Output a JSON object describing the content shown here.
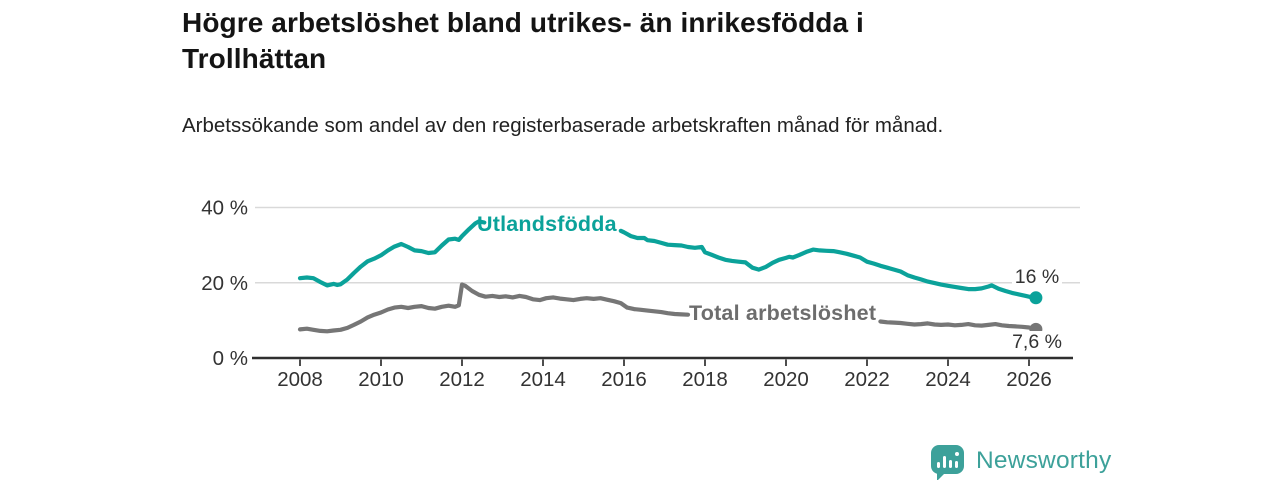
{
  "title": "Högre arbetslöshet bland utrikes- än inrikesfödda i Trollhättan",
  "subtitle": "Arbetssökande som andel av den registerbaserade arbetskraften månad för månad.",
  "footer": {
    "brand": "Newsworthy",
    "logo_icon": "bar-chart-speech-bubble-icon"
  },
  "brand_color": "#3da19a",
  "chart_data": {
    "type": "line",
    "unit": "%",
    "x_axis": {
      "ticks": [
        2008,
        2010,
        2012,
        2014,
        2016,
        2018,
        2020,
        2022,
        2024,
        2026
      ],
      "range": [
        2006.8,
        2027.3
      ]
    },
    "y_axis": {
      "ticks": [
        {
          "value": 0,
          "label": "0 %"
        },
        {
          "value": 20,
          "label": "20 %"
        },
        {
          "value": 40,
          "label": "40 %"
        }
      ],
      "range": [
        0,
        40
      ],
      "gridlines": [
        20,
        40
      ]
    },
    "style": {
      "gridline_color": "#d9d9d9",
      "axis_color": "#2f2f2f",
      "tick_label_color": "#333333",
      "value_label_color": "#333333"
    },
    "series": [
      {
        "id": "utlandsfodda",
        "name": "Utlandsfödda",
        "color": "#0ba29a",
        "label_color": "#0ba29a",
        "end_label": "16 %",
        "end_value": 16.0,
        "segments": [
          [
            [
              2008.0,
              21.2
            ],
            [
              2008.17,
              21.4
            ],
            [
              2008.33,
              21.2
            ],
            [
              2008.5,
              20.2
            ],
            [
              2008.67,
              19.3
            ],
            [
              2008.83,
              19.7
            ],
            [
              2008.92,
              19.4
            ],
            [
              2009.0,
              19.6
            ],
            [
              2009.17,
              20.9
            ],
            [
              2009.33,
              22.6
            ],
            [
              2009.5,
              24.3
            ],
            [
              2009.67,
              25.7
            ],
            [
              2009.83,
              26.4
            ],
            [
              2010.0,
              27.3
            ],
            [
              2010.17,
              28.6
            ],
            [
              2010.33,
              29.6
            ],
            [
              2010.5,
              30.3
            ],
            [
              2010.67,
              29.5
            ],
            [
              2010.83,
              28.6
            ],
            [
              2011.0,
              28.4
            ],
            [
              2011.17,
              27.9
            ],
            [
              2011.33,
              28.1
            ],
            [
              2011.5,
              29.9
            ],
            [
              2011.67,
              31.5
            ],
            [
              2011.83,
              31.7
            ],
            [
              2011.92,
              31.4
            ],
            [
              2012.0,
              32.4
            ],
            [
              2012.17,
              34.2
            ],
            [
              2012.33,
              35.8
            ],
            [
              2012.42,
              36.3
            ],
            [
              2012.55,
              36.0
            ]
          ],
          [
            [
              2015.92,
              33.8
            ],
            [
              2016.0,
              33.4
            ],
            [
              2016.17,
              32.4
            ],
            [
              2016.33,
              31.9
            ],
            [
              2016.5,
              31.9
            ],
            [
              2016.58,
              31.3
            ],
            [
              2016.75,
              31.1
            ],
            [
              2016.92,
              30.6
            ],
            [
              2017.08,
              30.1
            ],
            [
              2017.25,
              30.0
            ],
            [
              2017.42,
              29.9
            ],
            [
              2017.58,
              29.5
            ],
            [
              2017.75,
              29.3
            ],
            [
              2017.92,
              29.5
            ],
            [
              2018.0,
              28.1
            ],
            [
              2018.17,
              27.4
            ],
            [
              2018.33,
              26.7
            ],
            [
              2018.5,
              26.1
            ],
            [
              2018.67,
              25.8
            ],
            [
              2018.83,
              25.6
            ],
            [
              2019.0,
              25.4
            ],
            [
              2019.17,
              24.0
            ],
            [
              2019.33,
              23.5
            ],
            [
              2019.5,
              24.2
            ],
            [
              2019.67,
              25.3
            ],
            [
              2019.83,
              26.1
            ],
            [
              2020.0,
              26.6
            ],
            [
              2020.08,
              26.9
            ],
            [
              2020.17,
              26.7
            ],
            [
              2020.33,
              27.4
            ],
            [
              2020.5,
              28.2
            ],
            [
              2020.67,
              28.8
            ],
            [
              2020.83,
              28.6
            ],
            [
              2021.0,
              28.5
            ],
            [
              2021.17,
              28.4
            ],
            [
              2021.33,
              28.1
            ],
            [
              2021.5,
              27.7
            ],
            [
              2021.67,
              27.2
            ],
            [
              2021.83,
              26.7
            ],
            [
              2022.0,
              25.6
            ],
            [
              2022.17,
              25.1
            ],
            [
              2022.33,
              24.5
            ],
            [
              2022.5,
              24.0
            ],
            [
              2022.67,
              23.5
            ],
            [
              2022.83,
              23.0
            ],
            [
              2023.0,
              22.0
            ],
            [
              2023.17,
              21.4
            ],
            [
              2023.33,
              20.9
            ],
            [
              2023.5,
              20.3
            ],
            [
              2023.67,
              19.9
            ],
            [
              2023.83,
              19.5
            ],
            [
              2024.0,
              19.2
            ],
            [
              2024.17,
              18.9
            ],
            [
              2024.33,
              18.6
            ],
            [
              2024.5,
              18.3
            ],
            [
              2024.67,
              18.3
            ],
            [
              2024.83,
              18.5
            ],
            [
              2025.0,
              19.0
            ],
            [
              2025.08,
              19.3
            ],
            [
              2025.25,
              18.4
            ],
            [
              2025.42,
              17.8
            ],
            [
              2025.58,
              17.3
            ],
            [
              2025.75,
              16.9
            ],
            [
              2025.92,
              16.5
            ],
            [
              2026.08,
              16.1
            ],
            [
              2026.17,
              16.0
            ]
          ]
        ]
      },
      {
        "id": "total",
        "name": "Total arbetslöshet",
        "color": "#767676",
        "label_color": "#6d6d6d",
        "end_label": "7,6 %",
        "end_value": 7.6,
        "segments": [
          [
            [
              2008.0,
              7.6
            ],
            [
              2008.17,
              7.8
            ],
            [
              2008.33,
              7.5
            ],
            [
              2008.5,
              7.2
            ],
            [
              2008.67,
              7.1
            ],
            [
              2008.83,
              7.3
            ],
            [
              2009.0,
              7.5
            ],
            [
              2009.17,
              8.0
            ],
            [
              2009.33,
              8.8
            ],
            [
              2009.5,
              9.7
            ],
            [
              2009.67,
              10.8
            ],
            [
              2009.83,
              11.5
            ],
            [
              2010.0,
              12.1
            ],
            [
              2010.17,
              12.9
            ],
            [
              2010.33,
              13.4
            ],
            [
              2010.5,
              13.6
            ],
            [
              2010.67,
              13.3
            ],
            [
              2010.83,
              13.6
            ],
            [
              2011.0,
              13.8
            ],
            [
              2011.17,
              13.3
            ],
            [
              2011.33,
              13.1
            ],
            [
              2011.5,
              13.6
            ],
            [
              2011.67,
              13.9
            ],
            [
              2011.83,
              13.6
            ],
            [
              2011.92,
              14.0
            ],
            [
              2012.0,
              19.5
            ],
            [
              2012.08,
              19.2
            ],
            [
              2012.25,
              17.8
            ],
            [
              2012.42,
              16.8
            ],
            [
              2012.58,
              16.3
            ],
            [
              2012.75,
              16.5
            ],
            [
              2012.92,
              16.2
            ],
            [
              2013.08,
              16.4
            ],
            [
              2013.25,
              16.1
            ],
            [
              2013.42,
              16.5
            ],
            [
              2013.58,
              16.2
            ],
            [
              2013.75,
              15.6
            ],
            [
              2013.92,
              15.4
            ],
            [
              2014.08,
              15.9
            ],
            [
              2014.25,
              16.1
            ],
            [
              2014.42,
              15.8
            ],
            [
              2014.58,
              15.6
            ],
            [
              2014.75,
              15.4
            ],
            [
              2014.92,
              15.7
            ],
            [
              2015.08,
              15.9
            ],
            [
              2015.25,
              15.7
            ],
            [
              2015.42,
              15.9
            ],
            [
              2015.58,
              15.5
            ],
            [
              2015.75,
              15.1
            ],
            [
              2015.92,
              14.6
            ],
            [
              2016.08,
              13.4
            ],
            [
              2016.25,
              13.0
            ],
            [
              2016.42,
              12.8
            ],
            [
              2016.58,
              12.6
            ],
            [
              2016.75,
              12.4
            ],
            [
              2016.92,
              12.2
            ],
            [
              2017.08,
              11.9
            ],
            [
              2017.25,
              11.7
            ],
            [
              2017.42,
              11.6
            ],
            [
              2017.58,
              11.5
            ]
          ],
          [
            [
              2022.33,
              9.7
            ],
            [
              2022.5,
              9.5
            ],
            [
              2022.67,
              9.4
            ],
            [
              2022.83,
              9.3
            ],
            [
              2023.0,
              9.1
            ],
            [
              2023.17,
              8.9
            ],
            [
              2023.33,
              9.0
            ],
            [
              2023.5,
              9.2
            ],
            [
              2023.67,
              8.9
            ],
            [
              2023.83,
              8.8
            ],
            [
              2024.0,
              8.9
            ],
            [
              2024.17,
              8.7
            ],
            [
              2024.33,
              8.8
            ],
            [
              2024.5,
              9.0
            ],
            [
              2024.67,
              8.7
            ],
            [
              2024.83,
              8.6
            ],
            [
              2025.0,
              8.8
            ],
            [
              2025.17,
              9.0
            ],
            [
              2025.33,
              8.7
            ],
            [
              2025.5,
              8.5
            ],
            [
              2025.67,
              8.4
            ],
            [
              2025.83,
              8.3
            ],
            [
              2026.0,
              8.1
            ],
            [
              2026.17,
              7.6
            ]
          ]
        ]
      }
    ]
  }
}
